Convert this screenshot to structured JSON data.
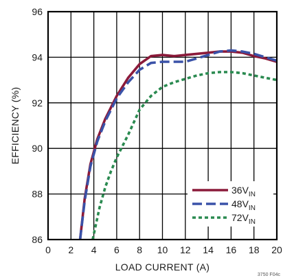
{
  "chart_data": {
    "type": "line",
    "title": "",
    "xlabel": "LOAD CURRENT (A)",
    "ylabel": "EFFICIENCY (%)",
    "xlim": [
      0,
      20
    ],
    "ylim": [
      86,
      96
    ],
    "xticks": [
      0,
      2,
      4,
      6,
      8,
      10,
      12,
      14,
      16,
      18,
      20
    ],
    "yticks": [
      86,
      88,
      90,
      92,
      94,
      96
    ],
    "grid": true,
    "legend_position": "bottom-right",
    "series": [
      {
        "name": "36V",
        "name_subscript": "IN",
        "color": "#8b1a3a",
        "style": "solid",
        "x": [
          2.8,
          3.2,
          3.7,
          4.3,
          5.0,
          6.0,
          7.0,
          8.0,
          9.0,
          10.0,
          11.0,
          12.0,
          13.0,
          14.0,
          15.0,
          16.0,
          17.0,
          18.0,
          19.0,
          20.0
        ],
        "y": [
          86.0,
          87.8,
          89.3,
          90.4,
          91.3,
          92.3,
          93.1,
          93.7,
          94.05,
          94.1,
          94.05,
          94.1,
          94.15,
          94.2,
          94.25,
          94.25,
          94.2,
          94.05,
          93.95,
          93.8
        ]
      },
      {
        "name": "48V",
        "name_subscript": "IN",
        "color": "#3a52a8",
        "style": "dashed",
        "x": [
          2.8,
          3.2,
          3.7,
          4.3,
          5.0,
          6.0,
          7.0,
          8.0,
          9.0,
          10.0,
          11.0,
          12.0,
          13.0,
          14.0,
          15.0,
          16.0,
          17.0,
          18.0,
          19.0,
          20.0
        ],
        "y": [
          86.0,
          87.7,
          89.2,
          90.3,
          91.2,
          92.2,
          92.9,
          93.45,
          93.75,
          93.8,
          93.8,
          93.8,
          93.95,
          94.1,
          94.25,
          94.3,
          94.25,
          94.15,
          94.0,
          93.85
        ]
      },
      {
        "name": "72V",
        "name_subscript": "IN",
        "color": "#2a8a50",
        "style": "dotted",
        "x": [
          3.9,
          4.5,
          5.0,
          5.5,
          6.0,
          7.0,
          8.0,
          9.0,
          10.0,
          11.0,
          12.0,
          13.0,
          14.0,
          15.0,
          16.0,
          17.0,
          18.0,
          19.0,
          20.0
        ],
        "y": [
          86.0,
          87.4,
          88.3,
          89.0,
          89.6,
          90.6,
          91.7,
          92.3,
          92.7,
          92.9,
          93.05,
          93.2,
          93.3,
          93.35,
          93.35,
          93.3,
          93.2,
          93.1,
          93.0
        ]
      }
    ],
    "footer_note": "3750 F04c"
  }
}
